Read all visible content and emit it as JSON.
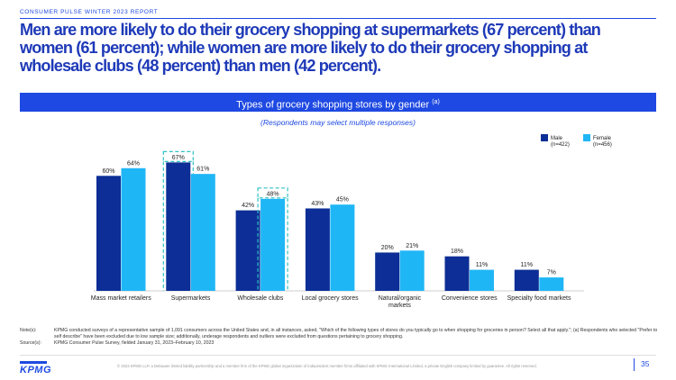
{
  "report_label": "CONSUMER PULSE WINTER 2023 REPORT",
  "headline": "Men are more likely to do their grocery shopping at supermarkets (67 percent) than women (61 percent); while women are more likely to do their grocery shopping at wholesale clubs (48 percent) than men (42 percent).",
  "chart_title": "Types of grocery shopping stores by gender",
  "chart_title_sup": "(a)",
  "chart_subtitle": "(Respondents may select multiple responses)",
  "colors": {
    "male": "#0C2E96",
    "female": "#1FB6F6",
    "accent": "#1E49E2",
    "highlight_box": "#30C1C4"
  },
  "chart_data": {
    "type": "bar",
    "categories": [
      "Mass market retailers",
      "Supermarkets",
      "Wholesale clubs",
      "Local grocery stores",
      "Natural/organic markets",
      "Convenience stores",
      "Specialty food markets"
    ],
    "series": [
      {
        "name": "Male",
        "legend_sub": "(n=422)",
        "values": [
          60,
          67,
          42,
          43,
          20,
          18,
          11
        ],
        "labels": [
          "60%",
          "67%",
          "42%",
          "43%",
          "20%",
          "18%",
          "11%"
        ]
      },
      {
        "name": "Female",
        "legend_sub": "(n=456)",
        "values": [
          64,
          61,
          48,
          45,
          21,
          11,
          7
        ],
        "labels": [
          "64%",
          "61%",
          "48%",
          "45%",
          "21%",
          "11%",
          "7%"
        ]
      }
    ],
    "highlights": [
      {
        "category": 1,
        "series": 0
      },
      {
        "category": 2,
        "series": 1
      }
    ],
    "ylim": [
      0,
      70
    ],
    "legend_position": "top-right",
    "grid": false
  },
  "notes": {
    "notes_label": "Note(s):",
    "notes_text": "KPMG conducted surveys of a representative sample of 1,091 consumers across the United States and, in all instances, asked, \"Which of the following types of stores do you typically go to when shopping for groceries in person? Select all that apply.\"; (a) Respondents who selected \"Prefer to self describe\" have been excluded due to low sample size; additionally, underage respondents and outliers were excluded from questions pertaining to grocery shopping.",
    "source_label": "Source(s):",
    "source_text": "KPMG Consumer Pulse Survey, fielded January 31, 2023–February 10, 2023"
  },
  "footer": {
    "logo": "KPMG",
    "copyright": "© 2023 KPMG LLP, a Delaware limited liability partnership and a member firm of the KPMG global organization of independent member firms affiliated with KPMG International Limited, a private English company limited by guarantee. All rights reserved.",
    "page_number": "35"
  }
}
